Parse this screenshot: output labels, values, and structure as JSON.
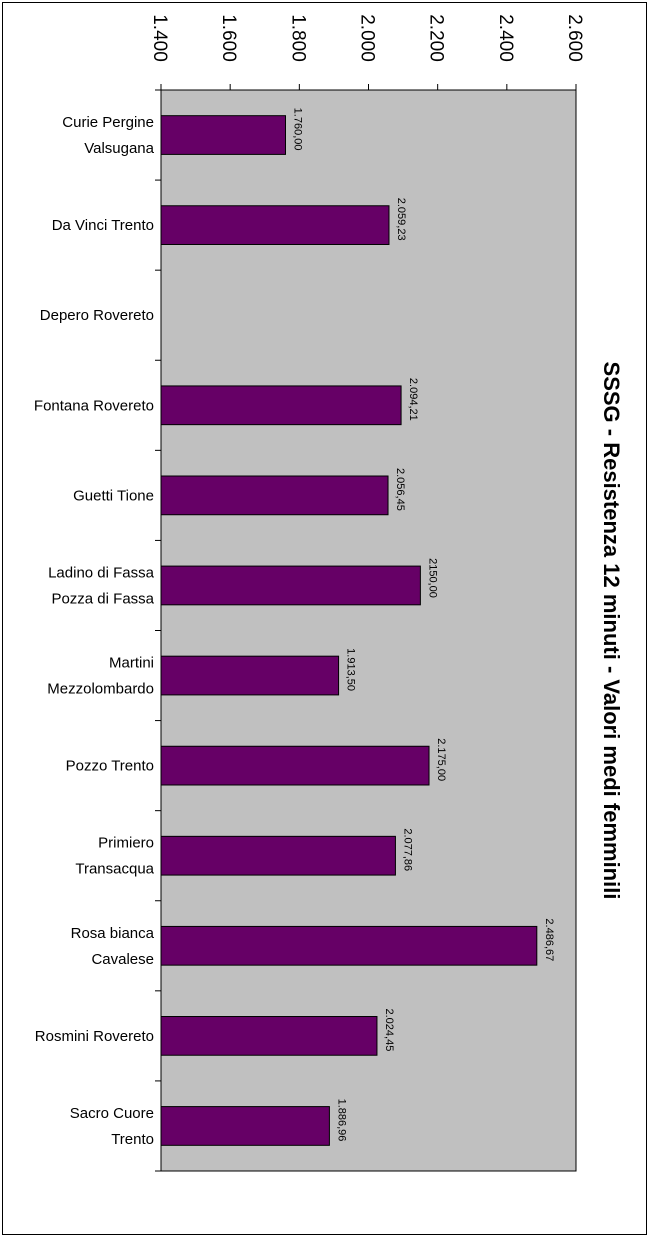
{
  "chart_data": {
    "type": "bar",
    "orientation": "horizontal",
    "title": "SSSG - Resistenza 12 minuti - Valori medi femminili",
    "categories": [
      [
        "Curie Pergine",
        "Valsugana"
      ],
      [
        "Da Vinci Trento"
      ],
      [
        "Depero Rovereto"
      ],
      [
        "Fontana Rovereto"
      ],
      [
        "Guetti Tione"
      ],
      [
        "Ladino di Fassa",
        "Pozza di Fassa"
      ],
      [
        "Martini",
        "Mezzolombardo"
      ],
      [
        "Pozzo Trento"
      ],
      [
        "Primiero",
        "Transacqua"
      ],
      [
        "Rosa bianca",
        "Cavalese"
      ],
      [
        "Rosmini Rovereto"
      ],
      [
        "Sacro Cuore",
        "Trento"
      ]
    ],
    "values": [
      1760.0,
      2059.23,
      null,
      2094.21,
      2056.45,
      2150.0,
      1913.5,
      2175.0,
      2077.86,
      2486.67,
      2024.45,
      1886.96
    ],
    "data_labels": [
      "1.760,00",
      "2.059,23",
      "",
      "2.094,21",
      "2.056,45",
      "2150,00",
      "1.913,50",
      "2.175,00",
      "2.077,86",
      "2.486,67",
      "2.024,45",
      "1.886,96"
    ],
    "value_axis": {
      "min": 1400,
      "max": 2600,
      "tick_values": [
        1400,
        1600,
        1800,
        2000,
        2200,
        2400,
        2600
      ],
      "tick_labels": [
        "1.400",
        "1.600",
        "1.800",
        "2.000",
        "2.200",
        "2.400",
        "2.600"
      ]
    },
    "xlabel": "",
    "ylabel": "",
    "grid": false,
    "legend": "none",
    "colors": {
      "bar": "#660066",
      "plot_background": "#c0c0c0",
      "axis": "#000000"
    }
  }
}
